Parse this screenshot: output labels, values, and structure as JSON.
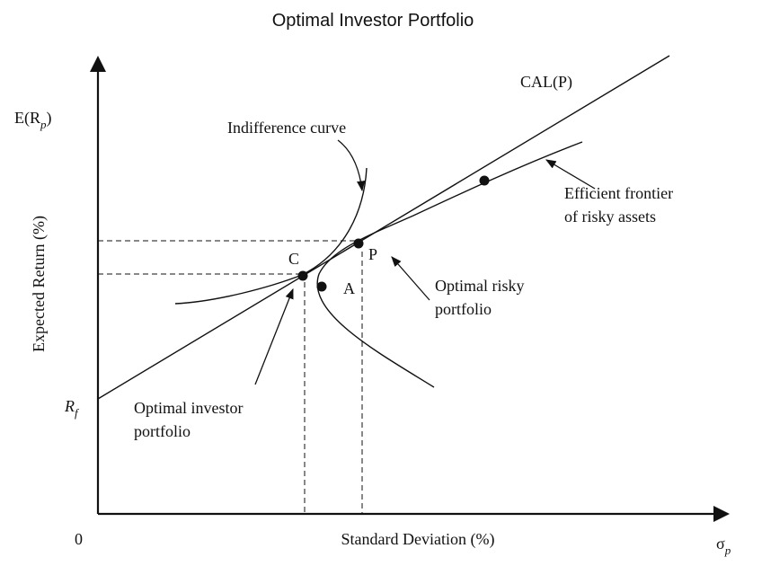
{
  "title": "Optimal Investor Portfolio",
  "axes": {
    "y_label_main": "E(R",
    "y_label_sub": "p",
    "y_label_close": ")",
    "y_title": "Expected Return (%)",
    "x_title": "Standard Deviation (%)",
    "x_symbol": "σ",
    "x_symbol_sub": "p",
    "origin": "0",
    "rf_main": "R",
    "rf_sub": "f"
  },
  "labels": {
    "cal": "CAL(P)",
    "indifference": "Indifference curve",
    "frontier_line1": "Efficient frontier",
    "frontier_line2": "of risky assets",
    "risky_line1": "Optimal risky",
    "risky_line2": "portfolio",
    "investor_line1": "Optimal investor",
    "investor_line2": "portfolio",
    "point_c": "C",
    "point_p": "P",
    "point_a": "A"
  }
}
